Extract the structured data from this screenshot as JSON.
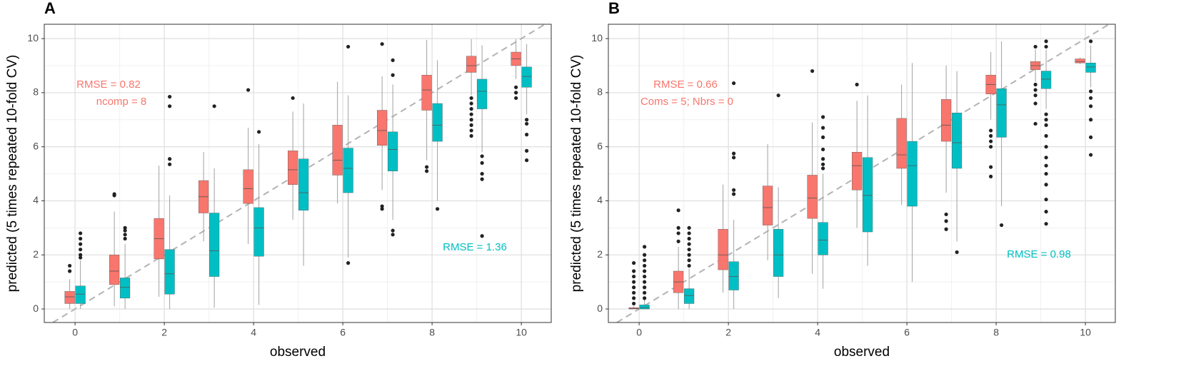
{
  "chart_data": [
    {
      "type": "box",
      "label": "A",
      "xlabel": "observed",
      "ylabel": "predicted (5 times repeated 10-fold CV)",
      "x": [
        0,
        1,
        2,
        3,
        4,
        5,
        6,
        7,
        8,
        9,
        10
      ],
      "xlim": [
        -0.69,
        10.67
      ],
      "ylim": [
        -0.5,
        10.53
      ],
      "xticks": [
        0,
        2,
        4,
        6,
        8,
        10
      ],
      "yticks": [
        0,
        2,
        4,
        6,
        8,
        10
      ],
      "grid": true,
      "minor_grid": true,
      "identity_line": true,
      "series": [
        {
          "color": "#F8766D",
          "low": [
            0,
            0.1,
            0.45,
            2.5,
            2.4,
            3.3,
            3.9,
            4.4,
            5.5,
            7.9,
            8.5
          ],
          "q1": [
            0.2,
            0.9,
            1.85,
            3.55,
            3.9,
            4.6,
            4.95,
            6.05,
            7.35,
            8.75,
            9.0
          ],
          "median": [
            0.45,
            1.4,
            2.6,
            4.15,
            4.45,
            5.15,
            5.5,
            6.6,
            8.1,
            9.0,
            9.25
          ],
          "q3": [
            0.65,
            2.0,
            3.35,
            4.75,
            5.15,
            5.85,
            6.8,
            7.35,
            8.65,
            9.35,
            9.5
          ],
          "high": [
            1.1,
            3.6,
            5.3,
            5.8,
            6.7,
            7.3,
            8.4,
            8.6,
            9.95,
            9.98,
            9.98
          ],
          "outliers": [
            [
              1.4,
              1.6
            ],
            [
              4.2,
              4.25
            ],
            [],
            [],
            [
              8.1
            ],
            [
              7.8
            ],
            [],
            [
              3.7,
              3.8,
              9.8
            ],
            [
              5.1,
              5.25
            ],
            [
              6.4,
              6.6,
              6.8,
              7.0,
              7.2,
              7.4,
              7.6,
              7.8
            ],
            [
              7.8,
              8.0,
              8.2
            ]
          ]
        },
        {
          "color": "#00BFC4",
          "low": [
            0,
            0,
            0,
            0.05,
            0.15,
            1.6,
            1.9,
            3.3,
            4.0,
            5.8,
            7.2
          ],
          "q1": [
            0.2,
            0.4,
            0.55,
            1.2,
            1.95,
            3.65,
            4.3,
            5.1,
            6.2,
            7.4,
            8.2
          ],
          "median": [
            0.55,
            0.8,
            1.3,
            2.15,
            3.0,
            4.3,
            5.2,
            5.9,
            6.8,
            8.05,
            8.6
          ],
          "q3": [
            0.85,
            1.15,
            2.2,
            3.55,
            3.75,
            5.55,
            5.95,
            6.55,
            7.6,
            8.5,
            8.95
          ],
          "high": [
            1.8,
            2.4,
            4.2,
            5.2,
            6.1,
            7.6,
            7.9,
            8.3,
            9.2,
            9.75,
            9.8
          ],
          "outliers": [
            [
              1.9,
              2.0,
              2.2,
              2.4,
              2.6,
              2.8
            ],
            [
              2.6,
              2.75,
              2.9,
              3.0
            ],
            [
              5.35,
              5.55,
              7.5,
              7.85
            ],
            [
              7.5
            ],
            [
              6.55
            ],
            [],
            [
              1.7,
              9.7
            ],
            [
              2.75,
              2.9,
              8.65,
              9.2
            ],
            [
              3.7
            ],
            [
              2.7,
              4.8,
              5.0,
              5.4,
              5.65
            ],
            [
              5.5,
              5.85,
              6.45,
              6.85,
              7.0
            ]
          ]
        }
      ],
      "annotations": [
        {
          "text": "RMSE = 0.82",
          "color": "#F8766D"
        },
        {
          "text": "ncomp = 8",
          "color": "#F8766D"
        },
        {
          "text": "RMSE = 1.36",
          "color": "#00BFC4"
        }
      ]
    },
    {
      "type": "box",
      "label": "B",
      "xlabel": "observed",
      "ylabel": "predicted (5 times repeated 10-fold CV)",
      "x": [
        0,
        1,
        2,
        3,
        4,
        5,
        6,
        7,
        8,
        9,
        10
      ],
      "xlim": [
        -0.69,
        10.67
      ],
      "ylim": [
        -0.5,
        10.53
      ],
      "xticks": [
        0,
        2,
        4,
        6,
        8,
        10
      ],
      "yticks": [
        0,
        2,
        4,
        6,
        8,
        10
      ],
      "grid": true,
      "minor_grid": true,
      "identity_line": true,
      "series": [
        {
          "color": "#F8766D",
          "low": [
            0,
            0,
            0.6,
            1.8,
            1.3,
            3.0,
            3.85,
            4.3,
            7.0,
            8.4,
            9.05
          ],
          "q1": [
            0,
            0.6,
            1.45,
            3.1,
            3.35,
            4.4,
            5.2,
            6.2,
            7.95,
            8.85,
            9.1
          ],
          "median": [
            0.02,
            1.0,
            2.0,
            3.75,
            4.1,
            5.3,
            5.7,
            6.8,
            8.3,
            9.0,
            9.15
          ],
          "q3": [
            0.05,
            1.4,
            2.95,
            4.55,
            4.95,
            5.8,
            7.05,
            7.75,
            8.65,
            9.15,
            9.25
          ],
          "high": [
            0.1,
            2.3,
            4.6,
            6.1,
            6.9,
            7.7,
            8.3,
            9.0,
            9.5,
            9.6,
            9.3
          ],
          "outliers": [
            [
              0.2,
              0.4,
              0.6,
              0.8,
              1.0,
              1.2,
              1.4,
              1.7
            ],
            [
              2.5,
              2.8,
              3.0,
              3.65
            ],
            [],
            [],
            [
              8.8
            ],
            [
              8.3
            ],
            [],
            [
              2.95,
              3.25,
              3.5
            ],
            [
              4.9,
              5.25,
              6.0,
              6.2,
              6.4,
              6.6
            ],
            [
              6.85,
              7.6,
              7.9,
              8.1,
              8.3,
              9.7
            ],
            []
          ]
        },
        {
          "color": "#00BFC4",
          "low": [
            0,
            0,
            0,
            0.4,
            0.75,
            1.6,
            1.0,
            2.5,
            3.8,
            7.4,
            8.2
          ],
          "q1": [
            0,
            0.2,
            0.7,
            1.2,
            2.0,
            2.85,
            3.8,
            5.2,
            6.35,
            8.15,
            8.75
          ],
          "median": [
            0.05,
            0.5,
            1.2,
            2.0,
            2.55,
            4.2,
            5.3,
            6.15,
            7.55,
            8.5,
            8.95
          ],
          "q3": [
            0.15,
            0.75,
            1.75,
            2.95,
            3.2,
            5.6,
            6.2,
            7.25,
            8.15,
            8.8,
            9.1
          ],
          "high": [
            0.35,
            1.5,
            3.3,
            4.5,
            5.0,
            7.9,
            9.1,
            8.8,
            9.9,
            9.6,
            9.75
          ],
          "outliers": [
            [
              0.4,
              0.6,
              0.8,
              1.0,
              1.2,
              1.4,
              1.6,
              1.8,
              2.0,
              2.3
            ],
            [
              1.6,
              1.8,
              2.0,
              2.2,
              2.4,
              2.6,
              2.8,
              3.0
            ],
            [
              4.25,
              4.4,
              5.6,
              5.75,
              8.35
            ],
            [
              7.9
            ],
            [
              5.2,
              5.35,
              5.55,
              5.9,
              6.35,
              6.7,
              7.1
            ],
            [],
            [],
            [
              2.1
            ],
            [
              3.1
            ],
            [
              3.15,
              3.6,
              4.05,
              4.6,
              5.0,
              5.3,
              5.6,
              6.0,
              6.4,
              6.8,
              7.0,
              7.2,
              9.7,
              9.9
            ],
            [
              5.7,
              6.35,
              7.0,
              7.5,
              7.8,
              8.05,
              9.9
            ]
          ]
        }
      ],
      "annotations": [
        {
          "text": "RMSE = 0.66",
          "color": "#F8766D"
        },
        {
          "text": "Coms = 5; Nbrs = 0",
          "color": "#F8766D"
        },
        {
          "text": "RMSE = 0.98",
          "color": "#00BFC4"
        }
      ]
    }
  ]
}
